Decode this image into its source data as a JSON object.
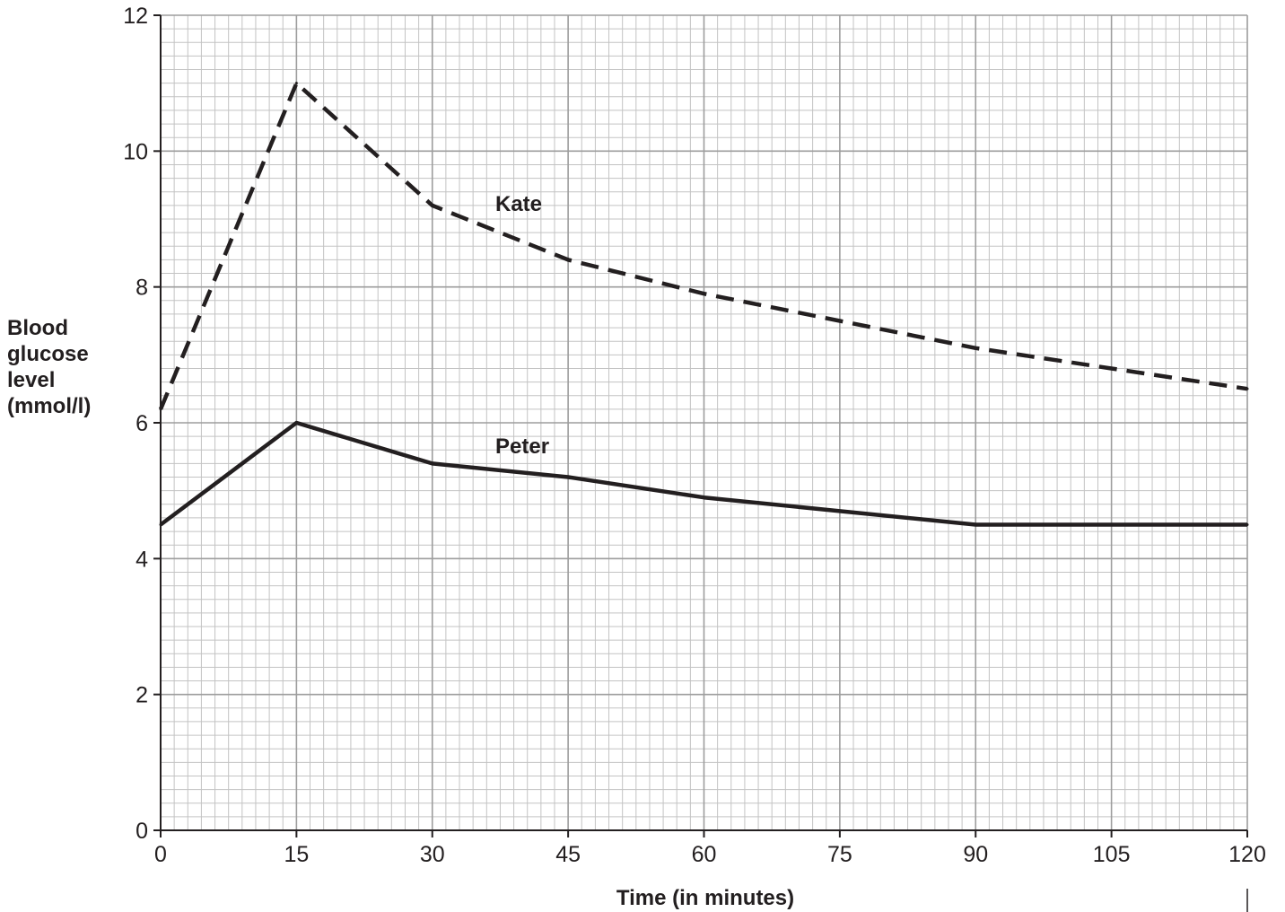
{
  "chart_data": {
    "type": "line",
    "xlabel": "Time (in minutes)",
    "ylabel": [
      "Blood",
      "glucose",
      "level",
      "(mmol/l)"
    ],
    "xlim": [
      0,
      120
    ],
    "ylim": [
      0,
      12
    ],
    "x_ticks": [
      0,
      15,
      30,
      45,
      60,
      75,
      90,
      105,
      120
    ],
    "y_ticks": [
      0,
      2,
      4,
      6,
      8,
      10,
      12
    ],
    "x_tick_labels": [
      "0",
      "15",
      "30",
      "45",
      "60",
      "75",
      "90",
      "105",
      "120"
    ],
    "y_tick_labels": [
      "0",
      "2",
      "4",
      "6",
      "8",
      "10",
      "12"
    ],
    "grid": true,
    "legend": "none",
    "series": [
      {
        "name": "Kate",
        "style": "dashed",
        "color": "#231f20",
        "x": [
          0,
          15,
          30,
          45,
          60,
          75,
          90,
          105,
          120
        ],
        "values": [
          6.2,
          11.0,
          9.2,
          8.4,
          7.9,
          7.5,
          7.1,
          6.8,
          6.5
        ]
      },
      {
        "name": "Peter",
        "style": "solid",
        "color": "#231f20",
        "x": [
          0,
          15,
          30,
          45,
          60,
          75,
          90,
          105,
          120
        ],
        "values": [
          4.5,
          6.0,
          5.4,
          5.2,
          4.9,
          4.7,
          4.5,
          4.5,
          4.5
        ]
      }
    ]
  },
  "colors": {
    "ink": "#231f20",
    "major_grid": "#9d9d9d",
    "minor_grid": "#c3c3c3"
  }
}
